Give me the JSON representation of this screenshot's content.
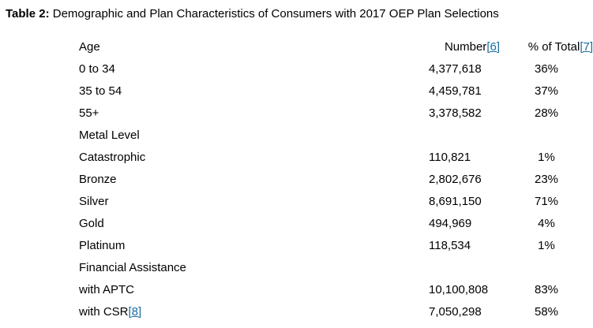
{
  "title": {
    "label": "Table 2:",
    "text": " Demographic and Plan Characteristics of Consumers with 2017 OEP Plan Selections"
  },
  "colors": {
    "text": "#000000",
    "footnote_link": "#1a6d9e",
    "background": "#ffffff"
  },
  "table": {
    "header_row": {
      "label": "Age",
      "number_label": "Number",
      "number_footnote": "[6]",
      "percent_label": "% of Total",
      "percent_footnote": "[7]"
    },
    "rows": [
      {
        "label": "0 to 34",
        "number": "4,377,618",
        "percent": "36%"
      },
      {
        "label": "35 to 54",
        "number": "4,459,781",
        "percent": "37%"
      },
      {
        "label": "55+",
        "number": "3,378,582",
        "percent": "28%"
      },
      {
        "label": "Metal Level",
        "section": true
      },
      {
        "label": "Catastrophic",
        "number": "110,821",
        "percent": "1%"
      },
      {
        "label": "Bronze",
        "number": "2,802,676",
        "percent": "23%"
      },
      {
        "label": "Silver",
        "number": "8,691,150",
        "percent": "71%"
      },
      {
        "label": "Gold",
        "number": "494,969",
        "percent": "4%"
      },
      {
        "label": "Platinum",
        "number": "118,534",
        "percent": "1%"
      },
      {
        "label": "Financial Assistance",
        "section": true
      },
      {
        "label": "with APTC",
        "number": "10,100,808",
        "percent": "83%"
      },
      {
        "label": "with CSR",
        "label_footnote": "[8]",
        "number": "7,050,298",
        "percent": "58%"
      }
    ]
  }
}
